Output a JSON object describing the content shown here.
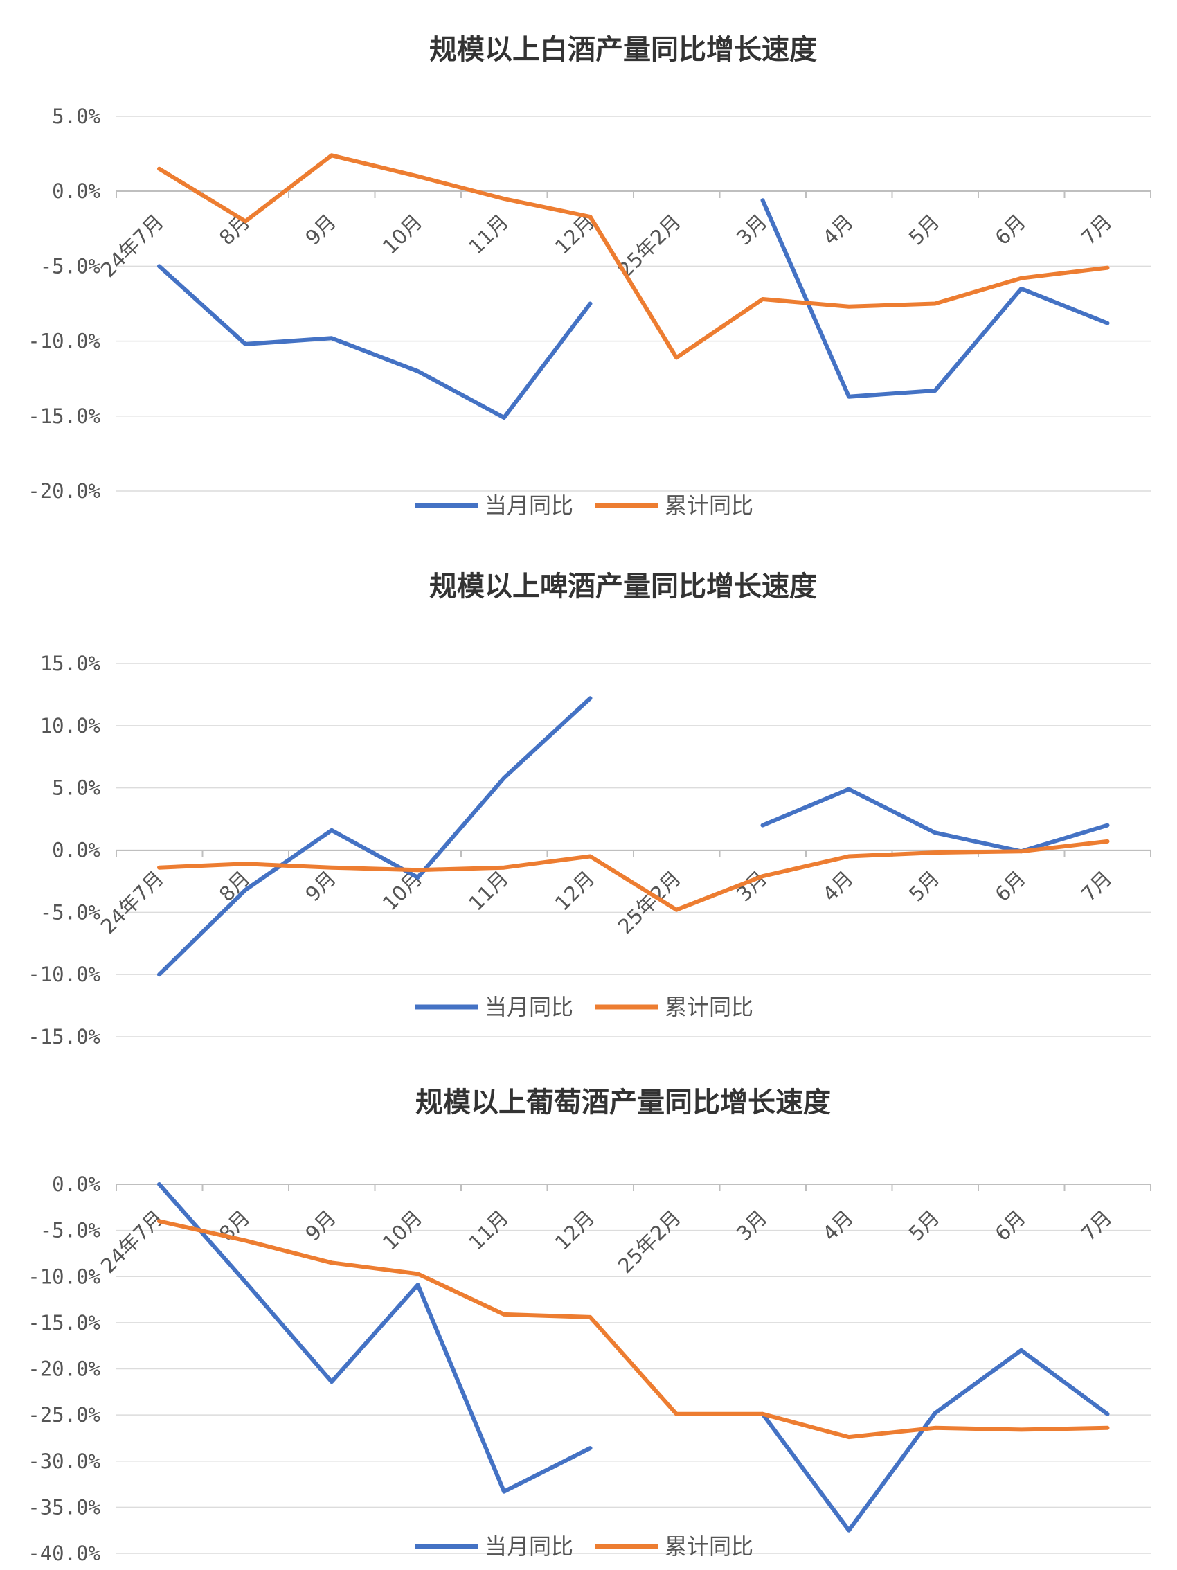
{
  "chart_data": [
    {
      "type": "line",
      "title": "规模以上白酒产量同比增长速度",
      "categories": [
        "24年7月",
        "8月",
        "9月",
        "10月",
        "11月",
        "12月",
        "25年2月",
        "3月",
        "4月",
        "5月",
        "6月",
        "7月"
      ],
      "y_ticks": [
        "5.0%",
        "0.0%",
        "-5.0%",
        "-10.0%",
        "-15.0%",
        "-20.0%"
      ],
      "ylim": [
        -20,
        5
      ],
      "grid": true,
      "legend_position": "bottom",
      "series": [
        {
          "name": "当月同比",
          "color": "#4472C4",
          "values": [
            -5.0,
            -10.2,
            -9.8,
            -12.0,
            -15.1,
            -7.5,
            null,
            -0.6,
            -13.7,
            -13.3,
            -6.5,
            -8.8
          ]
        },
        {
          "name": "累计同比",
          "color": "#ED7D31",
          "values": [
            1.5,
            -2.0,
            2.4,
            1.0,
            -0.5,
            -1.7,
            -11.1,
            -7.2,
            -7.7,
            -7.5,
            -5.8,
            -5.1
          ]
        }
      ]
    },
    {
      "type": "line",
      "title": "规模以上啤酒产量同比增长速度",
      "categories": [
        "24年7月",
        "8月",
        "9月",
        "10月",
        "11月",
        "12月",
        "25年2月",
        "3月",
        "4月",
        "5月",
        "6月",
        "7月"
      ],
      "y_ticks": [
        "15.0%",
        "10.0%",
        "5.0%",
        "0.0%",
        "-5.0%",
        "-10.0%",
        "-15.0%"
      ],
      "ylim": [
        -15,
        15
      ],
      "grid": true,
      "legend_position": "bottom",
      "series": [
        {
          "name": "当月同比",
          "color": "#4472C4",
          "values": [
            -10.0,
            -3.2,
            1.6,
            -2.2,
            5.8,
            12.2,
            null,
            2.0,
            4.9,
            1.4,
            -0.1,
            2.0
          ]
        },
        {
          "name": "累计同比",
          "color": "#ED7D31",
          "values": [
            -1.4,
            -1.1,
            -1.4,
            -1.6,
            -1.4,
            -0.5,
            -4.8,
            -2.1,
            -0.5,
            -0.2,
            -0.1,
            0.7
          ]
        }
      ]
    },
    {
      "type": "line",
      "title": "规模以上葡萄酒产量同比增长速度",
      "categories": [
        "24年7月",
        "8月",
        "9月",
        "10月",
        "11月",
        "12月",
        "25年2月",
        "3月",
        "4月",
        "5月",
        "6月",
        "7月"
      ],
      "y_ticks": [
        "0.0%",
        "-5.0%",
        "-10.0%",
        "-15.0%",
        "-20.0%",
        "-25.0%",
        "-30.0%",
        "-35.0%",
        "-40.0%"
      ],
      "ylim": [
        -40,
        0
      ],
      "grid": true,
      "legend_position": "bottom",
      "series": [
        {
          "name": "当月同比",
          "color": "#4472C4",
          "values": [
            0.0,
            -10.6,
            -21.4,
            -10.9,
            -33.3,
            -28.6,
            null,
            -24.9,
            -37.5,
            -24.8,
            -18.0,
            -24.9
          ]
        },
        {
          "name": "累计同比",
          "color": "#ED7D31",
          "values": [
            -4.0,
            -6.1,
            -8.5,
            -9.7,
            -14.1,
            -14.4,
            -24.9,
            -24.9,
            -27.4,
            -26.4,
            -26.6,
            -26.4
          ]
        }
      ]
    }
  ]
}
